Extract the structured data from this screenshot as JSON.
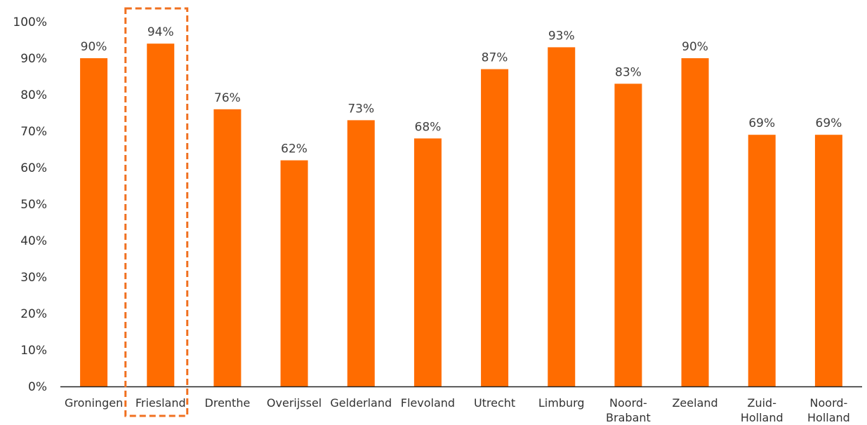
{
  "chart_data": {
    "type": "bar",
    "title": "",
    "xlabel": "",
    "ylabel": "",
    "ylim": [
      0,
      100
    ],
    "yticks": [
      "0%",
      "10%",
      "20%",
      "30%",
      "40%",
      "50%",
      "60%",
      "70%",
      "80%",
      "90%",
      "100%"
    ],
    "categories": [
      [
        "Groningen"
      ],
      [
        "Friesland"
      ],
      [
        "Drenthe"
      ],
      [
        "Overijssel"
      ],
      [
        "Gelderland"
      ],
      [
        "Flevoland"
      ],
      [
        "Utrecht"
      ],
      [
        "Limburg"
      ],
      [
        "Noord-",
        "Brabant"
      ],
      [
        "Zeeland"
      ],
      [
        "Zuid-",
        "Holland"
      ],
      [
        "Noord-",
        "Holland"
      ]
    ],
    "values": [
      90,
      94,
      76,
      62,
      73,
      68,
      87,
      93,
      83,
      90,
      69,
      69
    ],
    "data_labels": [
      "90%",
      "94%",
      "76%",
      "62%",
      "73%",
      "68%",
      "87%",
      "93%",
      "83%",
      "90%",
      "69%",
      "69%"
    ],
    "grid": false,
    "highlight": "Friesland",
    "colors": {
      "bar": "#FF6C00",
      "highlight_border": "#F07020",
      "axis": "#222222"
    }
  }
}
